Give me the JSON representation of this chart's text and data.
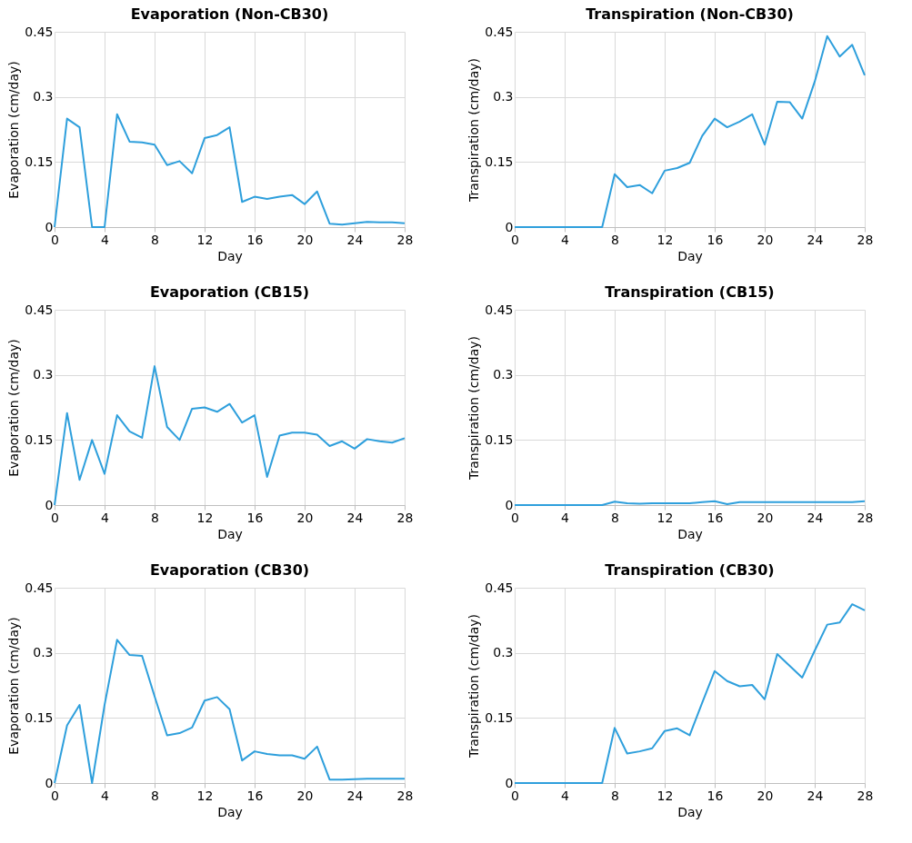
{
  "chart_data": [
    {
      "type": "line",
      "title": "Evaporation (Non-CB30)",
      "xlabel": "Day",
      "ylabel": "Evaporation (cm/day)",
      "color": "#2e9fdc",
      "xlim": [
        0,
        28
      ],
      "xticks": [
        0,
        4,
        8,
        12,
        16,
        20,
        24,
        28
      ],
      "ylim": [
        0,
        0.45
      ],
      "yticks": [
        0,
        0.15,
        0.3,
        0.45
      ],
      "grid": true,
      "x": [
        0,
        1,
        2,
        3,
        4,
        5,
        6,
        7,
        8,
        9,
        10,
        11,
        12,
        13,
        14,
        15,
        16,
        17,
        18,
        19,
        20,
        21,
        22,
        23,
        24,
        25,
        26,
        27,
        28
      ],
      "values": [
        0,
        0.25,
        0.23,
        0,
        0,
        0.26,
        0.197,
        0.195,
        0.19,
        0.143,
        0.152,
        0.124,
        0.205,
        0.212,
        0.23,
        0.058,
        0.07,
        0.065,
        0.07,
        0.074,
        0.053,
        0.082,
        0.008,
        0.006,
        0.009,
        0.012,
        0.011,
        0.011,
        0.009
      ]
    },
    {
      "type": "line",
      "title": "Transpiration (Non-CB30)",
      "xlabel": "Day",
      "ylabel": "Transpiration (cm/day)",
      "color": "#2e9fdc",
      "xlim": [
        0,
        28
      ],
      "xticks": [
        0,
        4,
        8,
        12,
        16,
        20,
        24,
        28
      ],
      "ylim": [
        0,
        0.45
      ],
      "yticks": [
        0,
        0.15,
        0.3,
        0.45
      ],
      "grid": true,
      "x": [
        0,
        1,
        2,
        3,
        4,
        5,
        6,
        7,
        8,
        9,
        10,
        11,
        12,
        13,
        14,
        15,
        16,
        17,
        18,
        19,
        20,
        21,
        22,
        23,
        24,
        25,
        26,
        27,
        28
      ],
      "values": [
        0,
        0,
        0,
        0,
        0,
        0,
        0,
        0,
        0.122,
        0.092,
        0.097,
        0.078,
        0.13,
        0.136,
        0.148,
        0.21,
        0.25,
        0.23,
        0.243,
        0.26,
        0.19,
        0.289,
        0.288,
        0.25,
        0.335,
        0.44,
        0.393,
        0.42,
        0.35
      ]
    },
    {
      "type": "line",
      "title": "Evaporation (CB15)",
      "xlabel": "Day",
      "ylabel": "Evaporation (cm/day)",
      "color": "#2e9fdc",
      "xlim": [
        0,
        28
      ],
      "xticks": [
        0,
        4,
        8,
        12,
        16,
        20,
        24,
        28
      ],
      "ylim": [
        0,
        0.45
      ],
      "yticks": [
        0,
        0.15,
        0.3,
        0.45
      ],
      "grid": true,
      "x": [
        0,
        1,
        2,
        3,
        4,
        5,
        6,
        7,
        8,
        9,
        10,
        11,
        12,
        13,
        14,
        15,
        16,
        17,
        18,
        19,
        20,
        21,
        22,
        23,
        24,
        25,
        26,
        27,
        28
      ],
      "values": [
        0,
        0.212,
        0.058,
        0.15,
        0.072,
        0.207,
        0.17,
        0.155,
        0.32,
        0.18,
        0.15,
        0.222,
        0.225,
        0.215,
        0.233,
        0.19,
        0.207,
        0.065,
        0.16,
        0.167,
        0.167,
        0.162,
        0.136,
        0.147,
        0.13,
        0.152,
        0.147,
        0.144,
        0.154
      ]
    },
    {
      "type": "line",
      "title": "Transpiration (CB15)",
      "xlabel": "Day",
      "ylabel": "Transpiration (cm/day)",
      "color": "#2e9fdc",
      "xlim": [
        0,
        28
      ],
      "xticks": [
        0,
        4,
        8,
        12,
        16,
        20,
        24,
        28
      ],
      "ylim": [
        0,
        0.45
      ],
      "yticks": [
        0,
        0.15,
        0.3,
        0.45
      ],
      "grid": true,
      "x": [
        0,
        1,
        2,
        3,
        4,
        5,
        6,
        7,
        8,
        9,
        10,
        11,
        12,
        13,
        14,
        15,
        16,
        17,
        18,
        19,
        20,
        21,
        22,
        23,
        24,
        25,
        26,
        27,
        28
      ],
      "values": [
        0,
        0,
        0,
        0,
        0,
        0,
        0,
        0,
        0.008,
        0.004,
        0.003,
        0.004,
        0.004,
        0.004,
        0.004,
        0.007,
        0.009,
        0.002,
        0.007,
        0.007,
        0.007,
        0.007,
        0.007,
        0.007,
        0.007,
        0.007,
        0.007,
        0.007,
        0.009
      ]
    },
    {
      "type": "line",
      "title": "Evaporation (CB30)",
      "xlabel": "Day",
      "ylabel": "Evaporation (cm/day)",
      "color": "#2e9fdc",
      "xlim": [
        0,
        28
      ],
      "xticks": [
        0,
        4,
        8,
        12,
        16,
        20,
        24,
        28
      ],
      "ylim": [
        0,
        0.45
      ],
      "yticks": [
        0,
        0.15,
        0.3,
        0.45
      ],
      "grid": true,
      "x": [
        0,
        1,
        2,
        3,
        4,
        5,
        6,
        7,
        8,
        9,
        10,
        11,
        12,
        13,
        14,
        15,
        16,
        17,
        18,
        19,
        20,
        21,
        22,
        23,
        24,
        25,
        26,
        27,
        28
      ],
      "values": [
        0,
        0.133,
        0.18,
        0,
        0.18,
        0.33,
        0.295,
        0.293,
        0.2,
        0.11,
        0.115,
        0.128,
        0.19,
        0.198,
        0.17,
        0.052,
        0.073,
        0.067,
        0.064,
        0.064,
        0.056,
        0.084,
        0.008,
        0.008,
        0.009,
        0.01,
        0.01,
        0.01,
        0.01
      ]
    },
    {
      "type": "line",
      "title": "Transpiration (CB30)",
      "xlabel": "Day",
      "ylabel": "Transpiration (cm/day)",
      "color": "#2e9fdc",
      "xlim": [
        0,
        28
      ],
      "xticks": [
        0,
        4,
        8,
        12,
        16,
        20,
        24,
        28
      ],
      "ylim": [
        0,
        0.45
      ],
      "yticks": [
        0,
        0.15,
        0.3,
        0.45
      ],
      "grid": true,
      "x": [
        0,
        1,
        2,
        3,
        4,
        5,
        6,
        7,
        8,
        9,
        10,
        11,
        12,
        13,
        14,
        15,
        16,
        17,
        18,
        19,
        20,
        21,
        22,
        23,
        24,
        25,
        26,
        27,
        28
      ],
      "values": [
        0,
        0,
        0,
        0,
        0,
        0,
        0,
        0,
        0.127,
        0.068,
        0.073,
        0.08,
        0.12,
        0.126,
        0.11,
        0.185,
        0.258,
        0.235,
        0.223,
        0.226,
        0.193,
        0.297,
        0.27,
        0.243,
        0.305,
        0.365,
        0.37,
        0.412,
        0.398
      ]
    }
  ]
}
